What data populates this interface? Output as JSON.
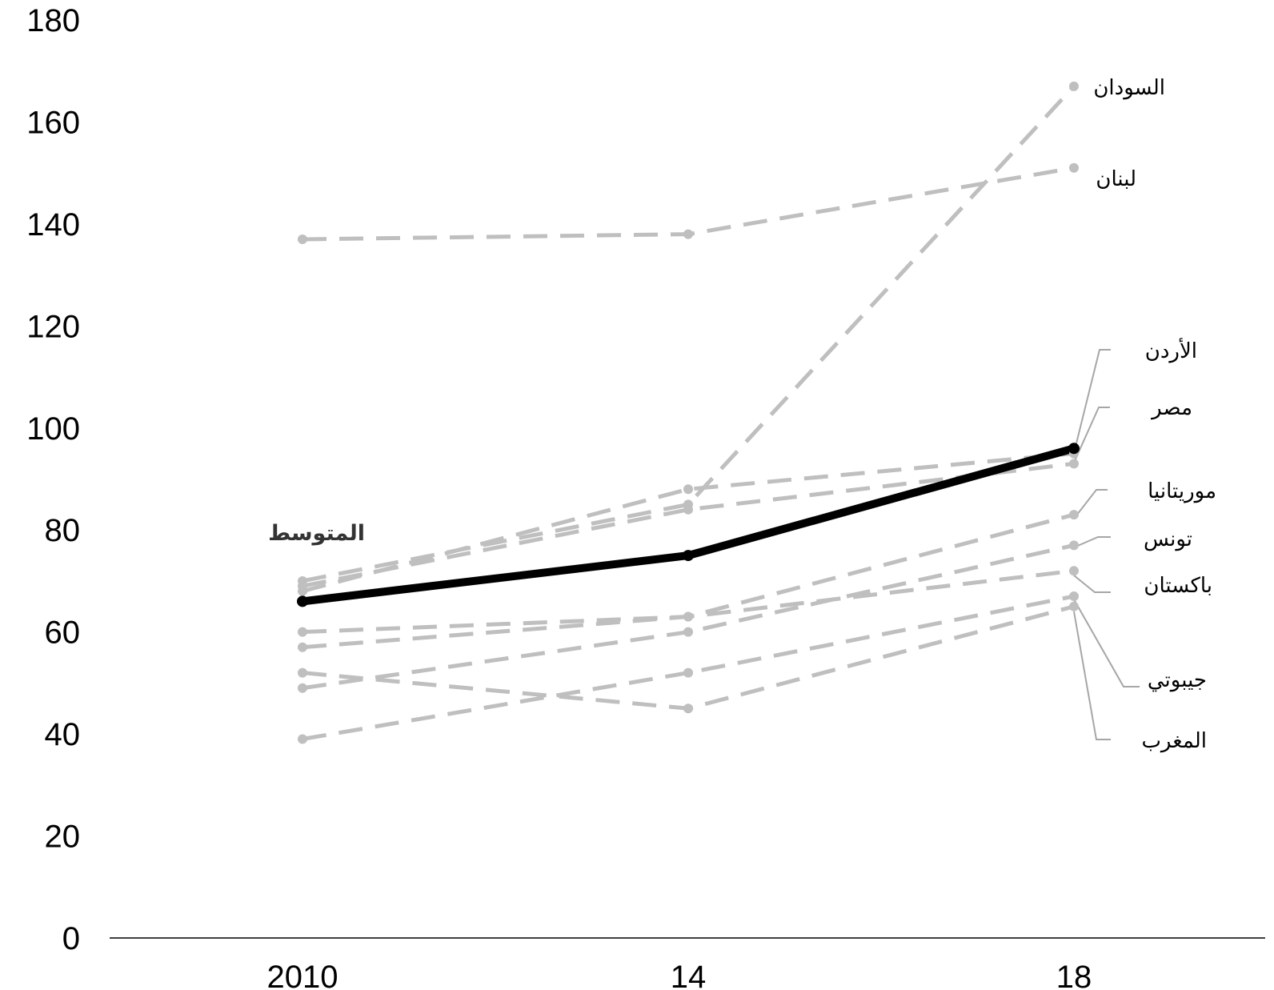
{
  "chart_data": {
    "type": "line",
    "title": "",
    "xlabel": "",
    "ylabel": "",
    "x": [
      "2010",
      "14",
      "18"
    ],
    "ylim": [
      0,
      180
    ],
    "yticks": [
      0,
      20,
      40,
      60,
      80,
      100,
      120,
      140,
      160,
      180
    ],
    "grid": false,
    "legend": "none",
    "colors": {
      "countries": "#bfbfbf",
      "average": "#000000",
      "leader": "#a6a6a6",
      "average_label": "#333333"
    },
    "series": [
      {
        "name": "السودان",
        "values": [
          70,
          85,
          167
        ],
        "style": "dashed"
      },
      {
        "name": "لبنان",
        "values": [
          137,
          138,
          151
        ],
        "style": "dashed"
      },
      {
        "name": "الأردن",
        "values": [
          68,
          88,
          95
        ],
        "style": "dashed"
      },
      {
        "name": "مصر",
        "values": [
          69,
          84,
          93
        ],
        "style": "dashed"
      },
      {
        "name": "موريتانيا",
        "values": [
          57,
          63,
          83
        ],
        "style": "dashed"
      },
      {
        "name": "تونس",
        "values": [
          49,
          60,
          77
        ],
        "style": "dashed"
      },
      {
        "name": "باكستان",
        "values": [
          60,
          63,
          72
        ],
        "style": "dashed"
      },
      {
        "name": "جيبوتي",
        "values": [
          39,
          52,
          67
        ],
        "style": "dashed"
      },
      {
        "name": "المغرب",
        "values": [
          52,
          45,
          65
        ],
        "style": "dashed"
      },
      {
        "name": "المتوسط",
        "values": [
          66,
          75,
          96
        ],
        "style": "solid"
      }
    ]
  }
}
